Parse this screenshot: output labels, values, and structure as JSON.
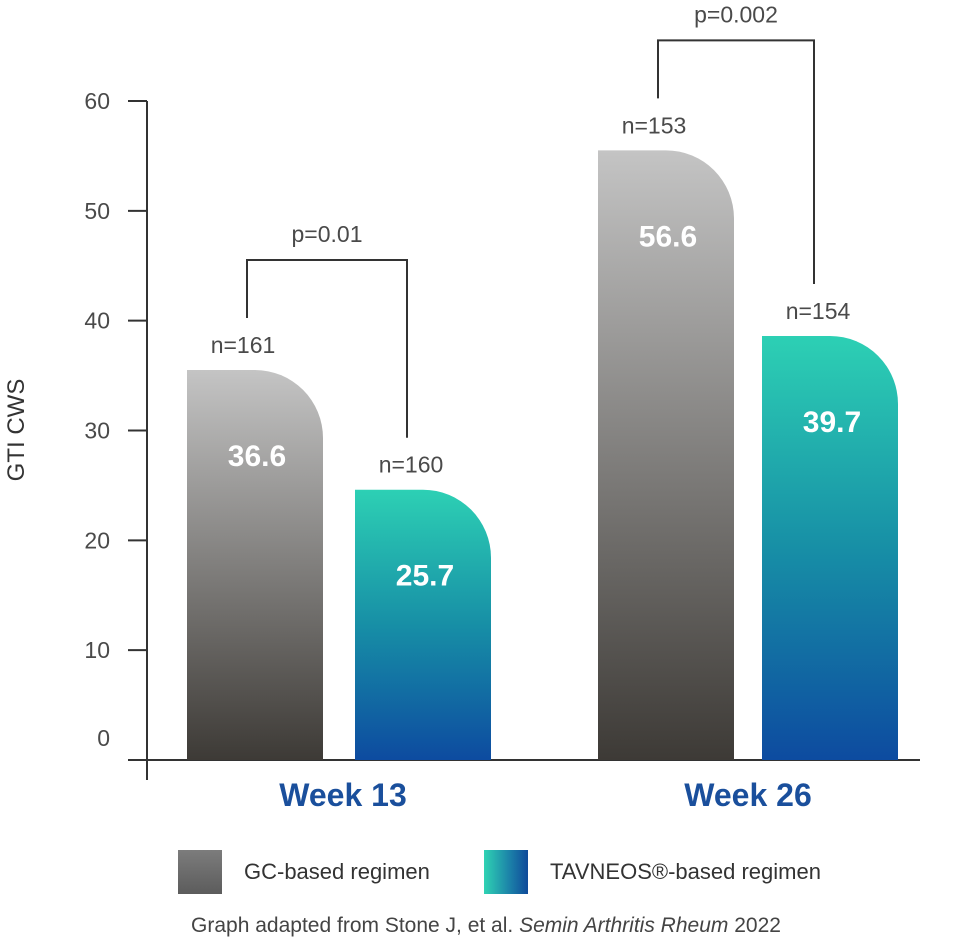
{
  "chart_data": {
    "type": "bar",
    "ylabel": "GTI CWS",
    "ylim": [
      0,
      60
    ],
    "yticks": [
      0,
      10,
      20,
      30,
      40,
      50,
      60
    ],
    "categories": [
      "Week 13",
      "Week 26"
    ],
    "series": [
      {
        "name": "GC-based regimen",
        "values": [
          36.6,
          56.6
        ],
        "n": [
          "n=161",
          "n=153"
        ],
        "color": "#8a8a8a"
      },
      {
        "name": "TAVNEOS®-based regimen",
        "values": [
          25.7,
          39.7
        ],
        "n": [
          "n=160",
          "n=154"
        ],
        "color": "#1b7fa8"
      }
    ],
    "annotations": [
      {
        "group": "Week 13",
        "text": "p=0.01"
      },
      {
        "group": "Week 26",
        "text": "p=0.002"
      }
    ]
  },
  "legend": {
    "gc_label": "GC-based regimen",
    "tav_label": "TAVNEOS®-based regimen"
  },
  "source": {
    "prefix": "Graph adapted from Stone J, et al. ",
    "journal": "Semin Arthritis Rheum",
    "year": " 2022"
  },
  "colors": {
    "gc_top": "#c4c4c4",
    "gc_bottom": "#3d3a36",
    "tav_top": "#2dd0b4",
    "tav_bottom": "#0d4ba0",
    "group_label": "#1a4f9c"
  }
}
